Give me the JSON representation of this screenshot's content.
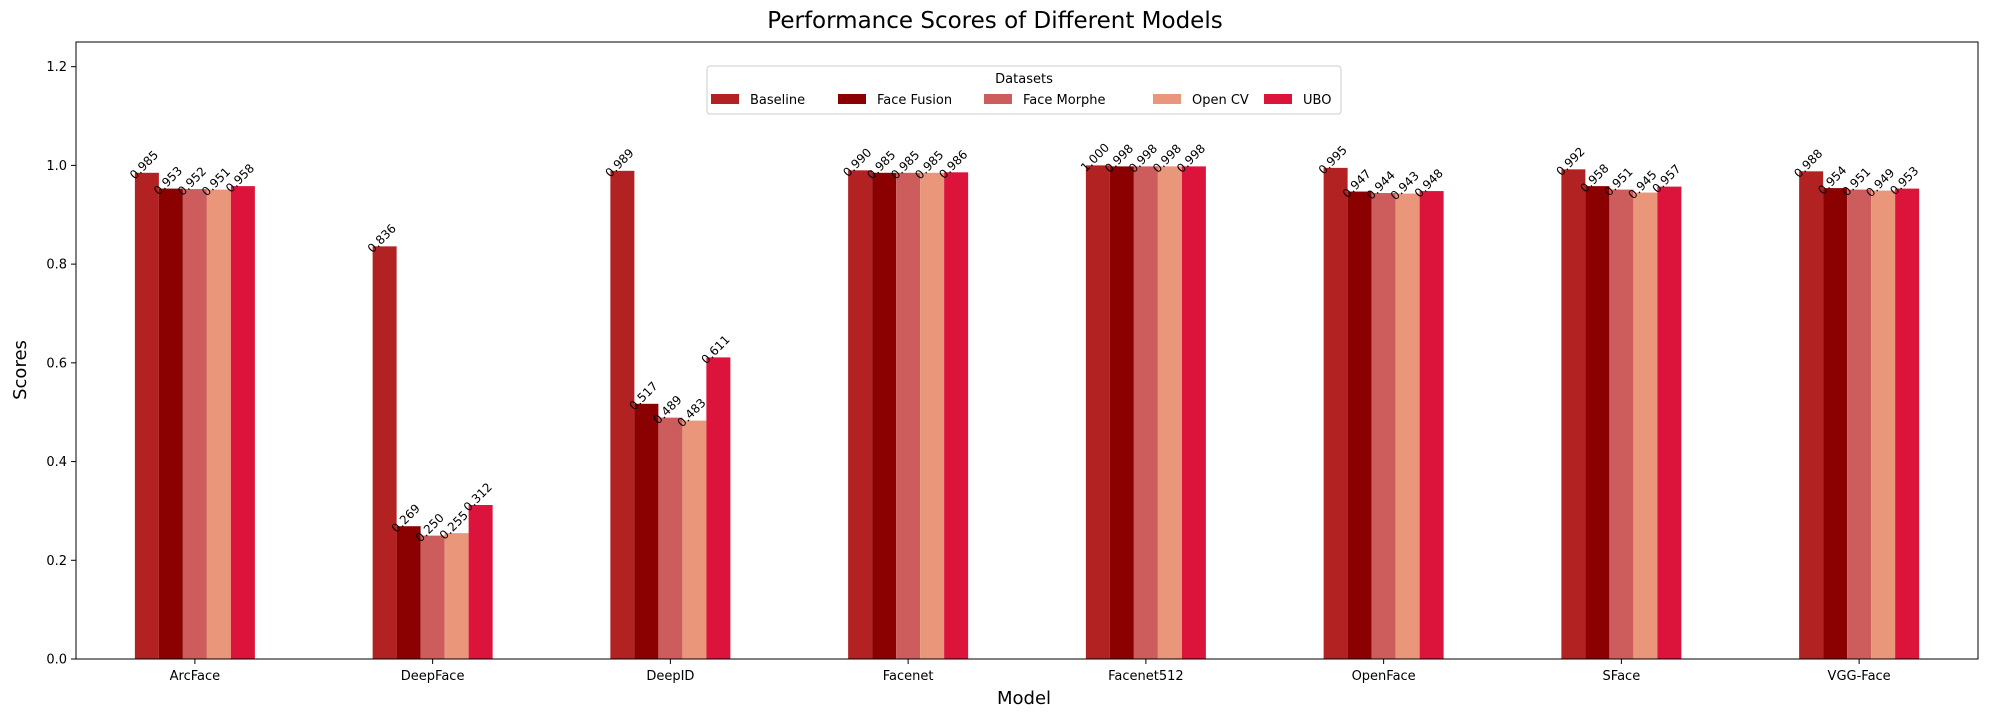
{
  "chart_data": {
    "type": "bar",
    "title": "Performance Scores of Different Models",
    "xlabel": "Model",
    "ylabel": "Scores",
    "ylim": [
      0,
      1.25
    ],
    "yticks": [
      "0.0",
      "0.2",
      "0.4",
      "0.6",
      "0.8",
      "1.0",
      "1.2"
    ],
    "grid": false,
    "legend": {
      "title": "Datasets",
      "placement": "upper-center"
    },
    "categories": [
      "ArcFace",
      "DeepFace",
      "DeepID",
      "Facenet",
      "Facenet512",
      "OpenFace",
      "SFace",
      "VGG-Face"
    ],
    "series": [
      {
        "name": "Baseline",
        "color": "#B22222",
        "values": [
          0.985,
          0.836,
          0.989,
          0.99,
          1.0,
          0.995,
          0.992,
          0.988
        ],
        "labels": [
          "0.985",
          "0.836",
          "0.989",
          "0.990",
          "1.000",
          "0.995",
          "0.992",
          "0.988"
        ]
      },
      {
        "name": "Face Fusion",
        "color": "#8B0000",
        "values": [
          0.953,
          0.269,
          0.517,
          0.985,
          0.998,
          0.947,
          0.958,
          0.954
        ],
        "labels": [
          "0.953",
          "0.269",
          "0.517",
          "0.985",
          "0.998",
          "0.947",
          "0.958",
          "0.954"
        ]
      },
      {
        "name": "Face Morphe",
        "color": "#CD5C5C",
        "values": [
          0.952,
          0.25,
          0.489,
          0.985,
          0.998,
          0.944,
          0.951,
          0.951
        ],
        "labels": [
          "0.952",
          "0.250",
          "0.489",
          "0.985",
          "0.998",
          "0.944",
          "0.951",
          "0.951"
        ]
      },
      {
        "name": "Open CV",
        "color": "#E9967A",
        "values": [
          0.951,
          0.255,
          0.483,
          0.985,
          0.998,
          0.943,
          0.945,
          0.949
        ],
        "labels": [
          "0.951",
          "0.255",
          "0.483",
          "0.985",
          "0.998",
          "0.943",
          "0.945",
          "0.949"
        ]
      },
      {
        "name": "UBO",
        "color": "#DC143C",
        "values": [
          0.958,
          0.312,
          0.611,
          0.986,
          0.998,
          0.948,
          0.957,
          0.953
        ],
        "labels": [
          "0.958",
          "0.312",
          "0.611",
          "0.986",
          "0.998",
          "0.948",
          "0.957",
          "0.953"
        ]
      }
    ]
  }
}
